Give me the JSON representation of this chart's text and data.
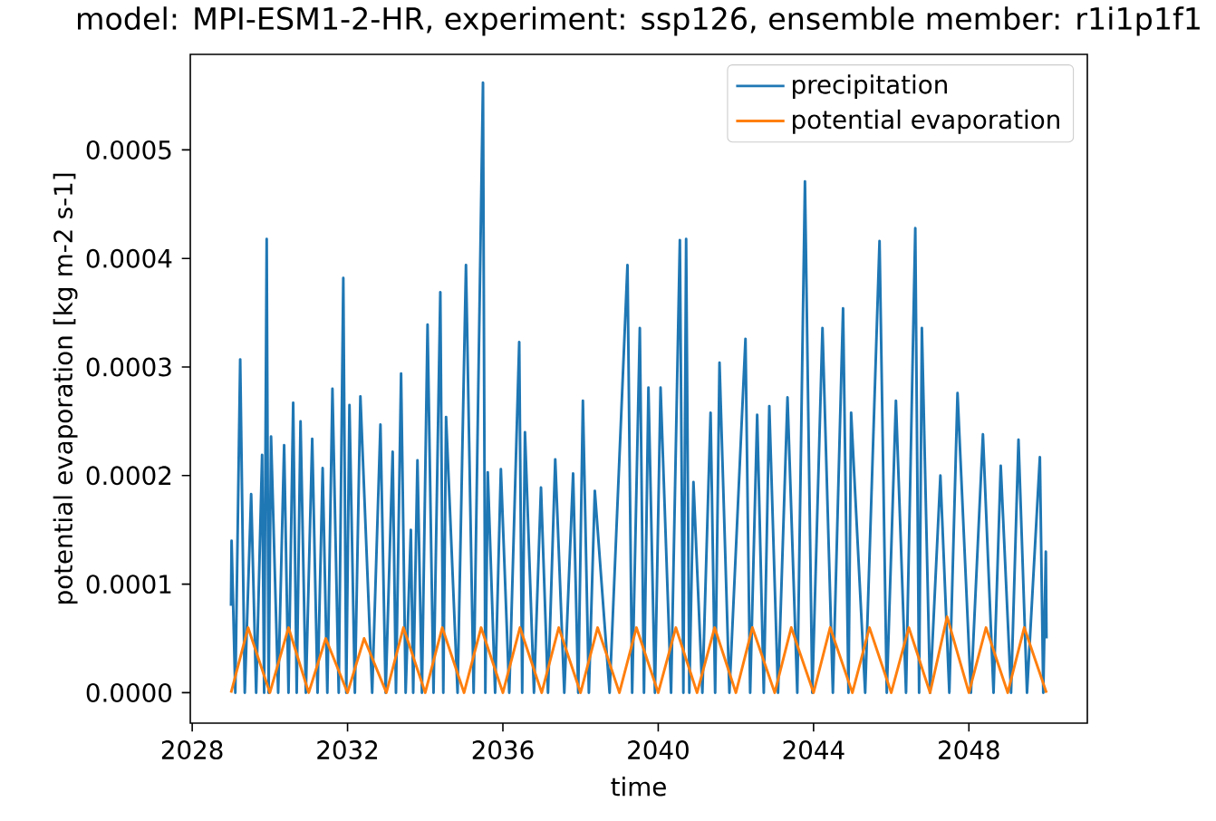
{
  "chart_data": {
    "type": "line",
    "title": "model: MPI-ESM1-2-HR, experiment: ssp126, ensemble member: r1i1p1f1",
    "xlabel": "time",
    "ylabel": "potential evaporation [kg m-2 s-1]",
    "xlim": [
      "2027-12-14",
      "2051-01-19"
    ],
    "ylim": [
      -2.8e-05,
      0.000588
    ],
    "xticks": [
      {
        "value": "2028-01-01",
        "label": "2028"
      },
      {
        "value": "2032-01-01",
        "label": "2032"
      },
      {
        "value": "2036-01-01",
        "label": "2036"
      },
      {
        "value": "2040-01-01",
        "label": "2040"
      },
      {
        "value": "2044-01-01",
        "label": "2044"
      },
      {
        "value": "2048-01-01",
        "label": "2048"
      }
    ],
    "yticks": [
      {
        "value": 0,
        "label": "0.0000"
      },
      {
        "value": 0.0001,
        "label": "0.0001"
      },
      {
        "value": 0.0002,
        "label": "0.0002"
      },
      {
        "value": 0.0003,
        "label": "0.0003"
      },
      {
        "value": 0.0004,
        "label": "0.0004"
      },
      {
        "value": 0.0005,
        "label": "0.0005"
      }
    ],
    "legend": "top right",
    "series": [
      {
        "name": "precipitation",
        "color": "#1f77b4",
        "x": [
          "2029-01-01",
          "2029-01-06",
          "2029-02-10",
          "2029-03-28",
          "2029-05-10",
          "2029-07-09",
          "2029-08-25",
          "2029-10-20",
          "2029-11-08",
          "2029-12-02",
          "2029-12-20",
          "2030-01-12",
          "2030-03-20",
          "2030-05-15",
          "2030-06-25",
          "2030-08-08",
          "2030-09-10",
          "2030-10-16",
          "2030-12-05",
          "2031-02-03",
          "2031-03-25",
          "2031-05-12",
          "2031-06-25",
          "2031-08-12",
          "2031-10-10",
          "2031-11-22",
          "2031-12-20",
          "2032-01-19",
          "2032-03-10",
          "2032-05-01",
          "2032-08-20",
          "2032-11-06",
          "2032-12-25",
          "2033-03-01",
          "2033-04-01",
          "2033-05-19",
          "2033-07-01",
          "2033-08-19",
          "2033-09-10",
          "2033-10-20",
          "2033-12-01",
          "2034-01-23",
          "2034-03-20",
          "2034-05-23",
          "2034-06-20",
          "2034-07-16",
          "2034-11-01",
          "2035-01-19",
          "2035-04-01",
          "2035-06-28",
          "2035-07-20",
          "2035-08-12",
          "2035-10-20",
          "2035-12-13",
          "2036-03-01",
          "2036-06-03",
          "2036-07-01",
          "2036-07-27",
          "2036-10-20",
          "2036-12-25",
          "2037-03-01",
          "2037-05-08",
          "2037-08-01",
          "2037-10-23",
          "2037-12-10",
          "2038-01-23",
          "2038-03-20",
          "2038-05-15",
          "2038-10-01",
          "2039-03-18",
          "2039-05-01",
          "2039-07-12",
          "2039-08-20",
          "2039-10-01",
          "2039-12-01",
          "2040-01-23",
          "2040-05-01",
          "2040-07-23",
          "2040-08-25",
          "2040-09-20",
          "2040-10-20",
          "2040-11-28",
          "2041-02-20",
          "2041-05-08",
          "2041-06-20",
          "2041-07-31",
          "2041-11-01",
          "2042-04-01",
          "2042-05-15",
          "2042-07-20",
          "2042-09-20",
          "2042-11-11",
          "2043-02-01",
          "2043-05-01",
          "2043-08-01",
          "2043-10-12",
          "2043-12-20",
          "2044-03-25",
          "2044-07-01",
          "2044-10-05",
          "2044-11-25",
          "2044-12-20",
          "2045-05-01",
          "2045-09-13",
          "2045-11-20",
          "2046-02-14",
          "2046-05-20",
          "2046-08-15",
          "2046-09-20",
          "2046-10-16",
          "2047-01-01",
          "2047-04-08",
          "2047-07-01",
          "2047-09-16",
          "2048-01-20",
          "2048-05-12",
          "2048-08-20",
          "2048-10-27",
          "2049-02-01",
          "2049-04-12",
          "2049-07-01",
          "2049-10-30",
          "2049-12-01",
          "2049-12-25",
          "2049-12-31"
        ],
        "values": [
          8e-05,
          0.00014,
          0.0,
          0.000307,
          0.0,
          0.000183,
          0.0,
          0.000219,
          0.0,
          0.000418,
          0.0,
          0.000236,
          0.0,
          0.000228,
          0.0,
          0.000267,
          0.0,
          0.00025,
          0.0,
          0.000234,
          0.0,
          0.000207,
          0.0,
          0.00028,
          0.0,
          0.000382,
          0.0,
          0.000265,
          0.0,
          0.000273,
          0.0,
          0.000247,
          0.0,
          0.000222,
          0.0,
          0.000294,
          0.0,
          0.00015,
          0.0,
          0.000214,
          0.0,
          0.000339,
          0.0,
          0.000369,
          0.0,
          0.000254,
          0.0,
          0.000394,
          0.0,
          0.000562,
          0.0,
          0.000203,
          0.0,
          0.000206,
          0.0,
          0.000323,
          0.0,
          0.00024,
          0.0,
          0.000189,
          0.0,
          0.000215,
          0.0,
          0.000202,
          0.0,
          0.000269,
          0.0,
          0.000186,
          0.0,
          0.000394,
          0.0,
          0.000336,
          0.0,
          0.000281,
          0.0,
          0.000281,
          0.0,
          0.000417,
          0.0,
          0.000418,
          0.0,
          0.000194,
          0.0,
          0.000258,
          0.0,
          0.000304,
          0.0,
          0.000326,
          0.0,
          0.000256,
          0.0,
          0.000264,
          0.0,
          0.000272,
          0.0,
          0.000471,
          0.0,
          0.000336,
          0.0,
          0.000354,
          0.0,
          0.000258,
          0.0,
          0.000416,
          0.0,
          0.000269,
          0.0,
          0.000428,
          0.0,
          0.000336,
          0.0,
          0.0002,
          0.0,
          0.000276,
          0.0,
          0.000238,
          0.0,
          0.000209,
          0.0,
          0.000233,
          0.0,
          0.000217,
          0.0,
          0.00013,
          5e-05
        ]
      },
      {
        "name": "potential evaporation",
        "color": "#ff7f0e",
        "x": [
          "2029-01-01",
          "2029-06-10",
          "2030-01-01",
          "2030-06-25",
          "2031-01-01",
          "2031-06-10",
          "2032-01-01",
          "2032-06-05",
          "2033-01-01",
          "2033-06-10",
          "2034-01-01",
          "2034-06-10",
          "2035-01-01",
          "2035-06-10",
          "2036-01-01",
          "2036-06-10",
          "2037-01-01",
          "2037-06-10",
          "2038-01-01",
          "2038-06-10",
          "2039-01-01",
          "2039-06-10",
          "2040-01-01",
          "2040-06-15",
          "2041-01-01",
          "2041-06-15",
          "2042-01-01",
          "2042-06-05",
          "2043-01-01",
          "2043-06-05",
          "2044-01-01",
          "2044-06-05",
          "2045-01-01",
          "2045-06-10",
          "2046-01-01",
          "2046-06-15",
          "2047-01-01",
          "2047-06-10",
          "2048-01-01",
          "2048-06-10",
          "2049-01-01",
          "2049-06-05",
          "2049-12-31"
        ],
        "values": [
          0.0,
          6e-05,
          0.0,
          6e-05,
          0.0,
          5e-05,
          0.0,
          5e-05,
          0.0,
          6e-05,
          0.0,
          6e-05,
          0.0,
          6e-05,
          0.0,
          6e-05,
          0.0,
          6e-05,
          0.0,
          6e-05,
          0.0,
          6e-05,
          0.0,
          6e-05,
          0.0,
          6e-05,
          0.0,
          6e-05,
          0.0,
          6e-05,
          0.0,
          6e-05,
          0.0,
          6e-05,
          0.0,
          6e-05,
          0.0,
          7e-05,
          0.0,
          6e-05,
          0.0,
          6e-05,
          0.0
        ]
      }
    ]
  }
}
